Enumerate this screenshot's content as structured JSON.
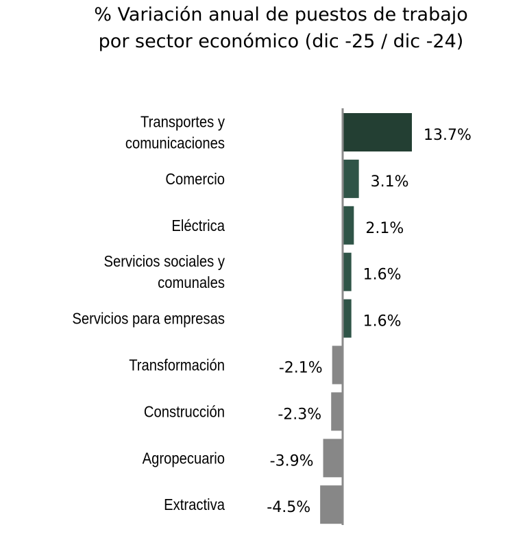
{
  "chart_data": {
    "type": "bar",
    "orientation": "horizontal",
    "title": "% Variación anual de puestos de trabajo por sector económico (dic -25 / dic -24)",
    "title_lines": [
      "% Variación anual de puestos de trabajo",
      "por sector económico (dic -25 / dic -24)"
    ],
    "xlabel": "",
    "ylabel": "",
    "grid": false,
    "legend": "none",
    "xlim": [
      -4.5,
      13.7
    ],
    "categories": [
      [
        "Transportes y",
        "comunicaciones"
      ],
      [
        "Comercio"
      ],
      [
        "Eléctrica"
      ],
      [
        "Servicios sociales y",
        "comunales"
      ],
      [
        "Servicios para empresas"
      ],
      [
        "Transformación"
      ],
      [
        "Construcción"
      ],
      [
        "Agropecuario"
      ],
      [
        "Extractiva"
      ]
    ],
    "values": [
      13.7,
      3.1,
      2.1,
      1.6,
      1.6,
      -2.1,
      -2.3,
      -3.9,
      -4.5
    ],
    "value_labels": [
      "13.7%",
      "3.1%",
      "2.1%",
      "1.6%",
      "1.6%",
      "-2.1%",
      "-2.3%",
      "-3.9%",
      "-4.5%"
    ],
    "colors": {
      "highlight": "#233f33",
      "positive": "#2f5447",
      "negative": "#878787",
      "axis": "#8a8a8a"
    }
  }
}
